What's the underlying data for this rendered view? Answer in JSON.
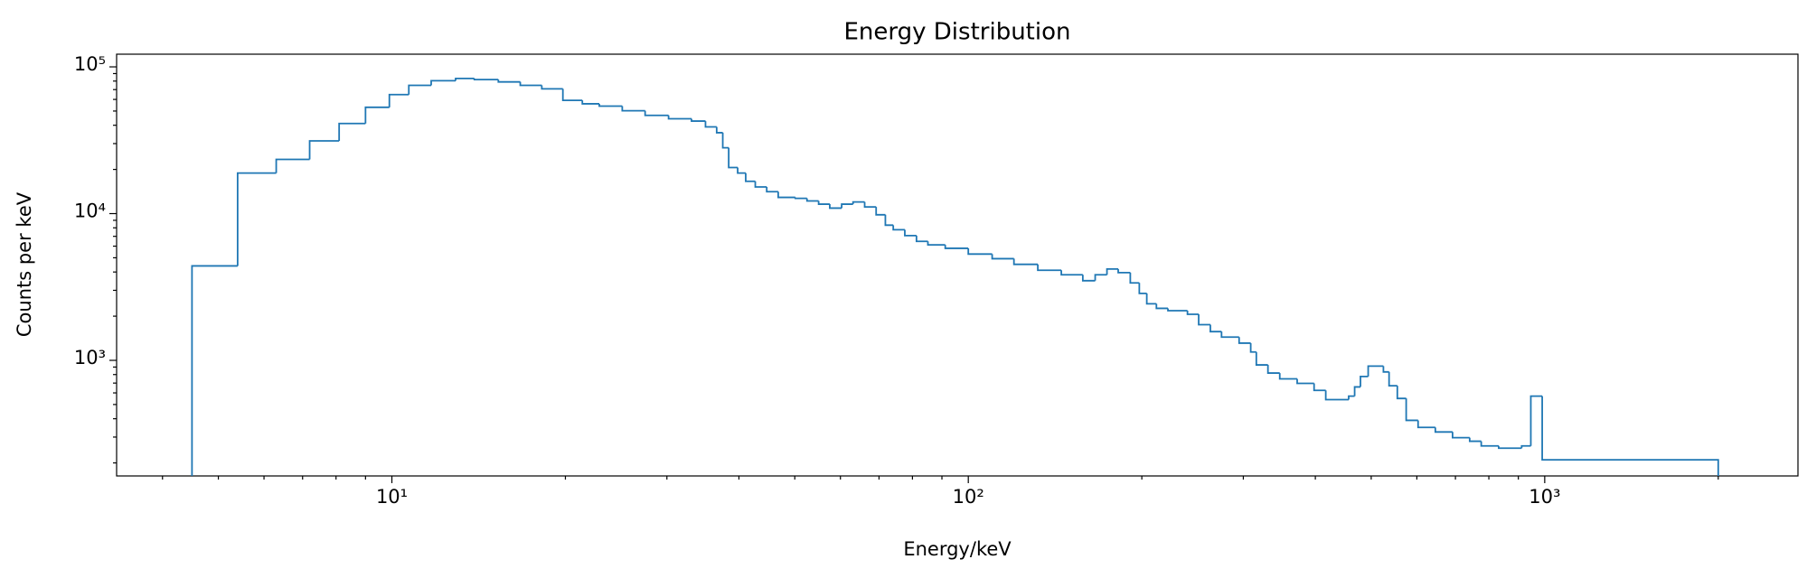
{
  "chart_data": {
    "type": "histogram",
    "title": "Energy Distribution",
    "x_label": "Energy/keV",
    "y_label": "Counts per keV",
    "color": "#1f77b4",
    "xscale": "log",
    "yscale": "log",
    "bins": [
      4.5,
      5.4,
      6.3,
      7.2,
      8.1,
      9.0,
      9.9,
      10.7,
      11.7,
      12.9,
      13.9,
      15.3,
      16.7,
      18.2,
      19.8,
      21.4,
      22.9,
      25.1,
      27.5,
      30.2,
      33.1,
      35.0,
      36.6,
      37.5,
      38.4,
      39.8,
      41.1,
      42.7,
      44.7,
      46.8,
      50.1,
      52.5,
      55.0,
      57.5,
      60.3,
      63.1,
      66.1,
      69.2,
      71.8,
      74.1,
      77.6,
      81.3,
      85.1,
      91.2,
      100,
      110,
      120,
      132,
      145,
      158,
      166,
      174,
      182,
      191,
      198,
      204,
      212,
      222,
      240,
      251,
      263,
      275,
      295,
      309,
      316,
      331,
      347,
      372,
      398,
      417,
      457,
      468,
      479,
      494,
      525,
      537,
      555,
      575,
      603,
      646,
      692,
      741,
      776,
      832,
      912,
      946,
      990,
      2000
    ],
    "counts": [
      4400,
      18900,
      23400,
      31300,
      41100,
      53000,
      64700,
      74800,
      80500,
      83400,
      81900,
      79000,
      74800,
      70800,
      59100,
      56000,
      54000,
      50200,
      46700,
      44300,
      42700,
      39000,
      35600,
      28100,
      20600,
      18900,
      16600,
      15200,
      14100,
      12900,
      12700,
      12200,
      11600,
      10900,
      11600,
      12000,
      11100,
      9820,
      8340,
      7760,
      7080,
      6470,
      6120,
      5800,
      5300,
      4930,
      4510,
      4110,
      3830,
      3490,
      3830,
      4190,
      3960,
      3370,
      2860,
      2430,
      2260,
      2180,
      2060,
      1750,
      1570,
      1440,
      1310,
      1140,
      931,
      819,
      748,
      697,
      624,
      540,
      570,
      659,
      776,
      914,
      834,
      671,
      550,
      390,
      349,
      325,
      297,
      281,
      261,
      252,
      261,
      570,
      210
    ],
    "xlim": [
      3.33,
      2750
    ],
    "ylim": [
      163,
      122000
    ],
    "xticks": [
      {
        "value": 10,
        "label": "10¹"
      },
      {
        "value": 100,
        "label": "10²"
      },
      {
        "value": 1000,
        "label": "10³"
      }
    ],
    "yticks": [
      {
        "value": 1000,
        "label": "10³"
      },
      {
        "value": 10000,
        "label": "10⁴"
      },
      {
        "value": 100000,
        "label": "10⁵"
      }
    ],
    "xminorticks": [
      4,
      5,
      6,
      7,
      8,
      9,
      20,
      30,
      40,
      50,
      60,
      70,
      80,
      90,
      200,
      300,
      400,
      500,
      600,
      700,
      800,
      900,
      2000
    ],
    "yminorticks": [
      200,
      300,
      400,
      500,
      600,
      700,
      800,
      900,
      2000,
      3000,
      4000,
      5000,
      6000,
      7000,
      8000,
      9000,
      20000,
      30000,
      40000,
      50000,
      60000,
      70000,
      80000,
      90000
    ]
  }
}
